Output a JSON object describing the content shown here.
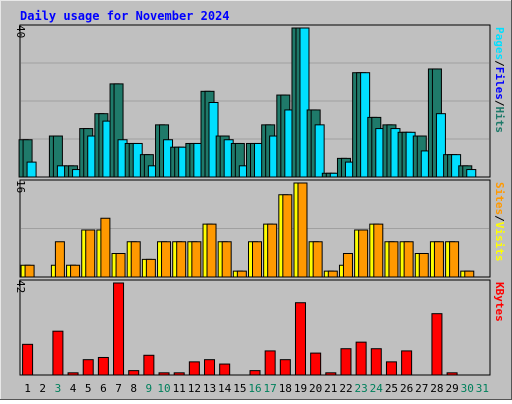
{
  "colors": {
    "background": "#c0c0c0",
    "title": "#0000ff",
    "pages": "#00dfff",
    "files": "#1f7a6a",
    "hits": "#1f7a6a",
    "visits": "#ffff00",
    "sites": "#ff9900",
    "kbytes": "#ff0000",
    "gridline": "#a0a0a0",
    "weekend_label": "#00805c",
    "day_label": "#000000"
  },
  "chart_data": {
    "type": "bar",
    "title": "Daily usage for November 2024",
    "categories": [
      "1",
      "2",
      "3",
      "4",
      "5",
      "6",
      "7",
      "8",
      "9",
      "10",
      "11",
      "12",
      "13",
      "14",
      "15",
      "16",
      "17",
      "18",
      "19",
      "20",
      "21",
      "22",
      "23",
      "24",
      "25",
      "26",
      "27",
      "28",
      "29",
      "30",
      "31"
    ],
    "weekend_days": [
      "3",
      "9",
      "10",
      "16",
      "17",
      "23",
      "24",
      "30",
      "31"
    ],
    "panels": [
      {
        "name": "traffic",
        "max_label": "40",
        "ymax": 40,
        "side_labels": [
          "Pages",
          "/",
          "Files",
          "/",
          "Hits"
        ],
        "series": [
          {
            "name": "Hits",
            "values": [
              10,
              0,
              11,
              3,
              13,
              17,
              25,
              9,
              6,
              14,
              8,
              9,
              23,
              11,
              9,
              9,
              14,
              22,
              40,
              18,
              1,
              5,
              28,
              16,
              14,
              12,
              11,
              29,
              6,
              3,
              0
            ]
          },
          {
            "name": "Files",
            "values": [
              10,
              0,
              11,
              3,
              13,
              17,
              25,
              9,
              6,
              14,
              8,
              9,
              23,
              11,
              9,
              9,
              14,
              22,
              40,
              18,
              1,
              5,
              28,
              16,
              14,
              12,
              11,
              29,
              6,
              3,
              0
            ]
          },
          {
            "name": "Pages",
            "values": [
              4,
              0,
              3,
              2,
              11,
              15,
              10,
              9,
              3,
              10,
              8,
              9,
              20,
              10,
              3,
              9,
              11,
              18,
              40,
              14,
              1,
              4,
              28,
              13,
              13,
              12,
              7,
              17,
              6,
              2,
              0
            ]
          }
        ]
      },
      {
        "name": "visitors",
        "max_label": "16",
        "ymax": 16,
        "side_labels": [
          "Sites",
          "/",
          "Visits"
        ],
        "series": [
          {
            "name": "Visits",
            "values": [
              2,
              0,
              2,
              2,
              8,
              8,
              4,
              6,
              3,
              6,
              6,
              6,
              9,
              6,
              1,
              6,
              9,
              14,
              16,
              6,
              1,
              2,
              8,
              9,
              6,
              6,
              4,
              6,
              6,
              1,
              0
            ]
          },
          {
            "name": "Sites",
            "values": [
              2,
              0,
              6,
              2,
              8,
              10,
              4,
              6,
              3,
              6,
              6,
              6,
              9,
              6,
              1,
              6,
              9,
              14,
              16,
              6,
              1,
              4,
              8,
              9,
              6,
              6,
              4,
              6,
              6,
              1,
              0
            ]
          }
        ]
      },
      {
        "name": "kbytes",
        "max_label": "42",
        "ymax": 42,
        "side_labels": [
          "KBytes"
        ],
        "series": [
          {
            "name": "KBytes",
            "values": [
              14,
              0,
              20,
              1,
              7,
              8,
              42,
              2,
              9,
              1,
              1,
              6,
              7,
              5,
              0,
              2,
              11,
              7,
              33,
              10,
              1,
              12,
              15,
              12,
              6,
              11,
              0,
              28,
              1,
              0,
              0
            ]
          }
        ]
      }
    ]
  }
}
